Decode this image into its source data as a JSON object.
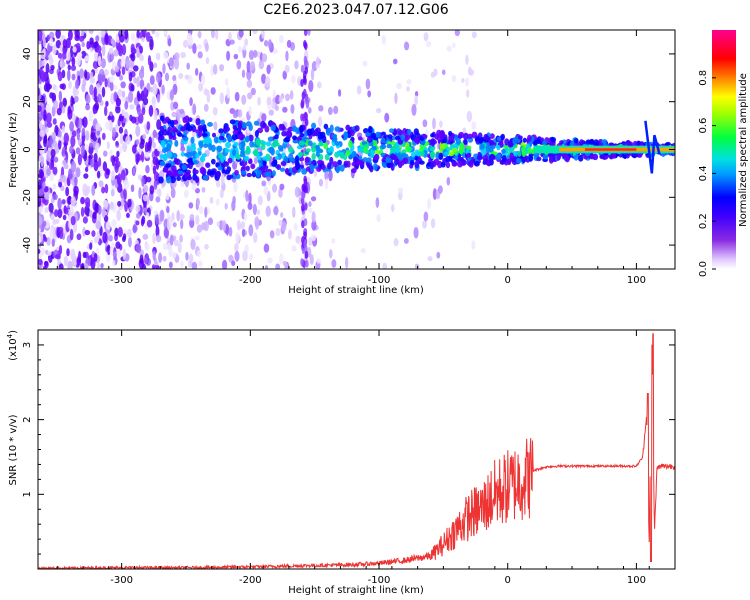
{
  "title": "C2E6.2023.047.07.12.G06",
  "chart_data": [
    {
      "type": "heatmap",
      "xlabel": "Height of straight line (km)",
      "ylabel": "Frequency (Hz)",
      "xlim": [
        -365,
        130
      ],
      "ylim": [
        -50,
        50
      ],
      "xticks": [
        -300,
        -200,
        -100,
        0,
        100
      ],
      "yticks": [
        -40,
        -20,
        0,
        20,
        40
      ],
      "colorbar": {
        "label": "Normalized spectral amplitude",
        "range": [
          0.0,
          1.0
        ],
        "ticks": [
          "0.0",
          "0.2",
          "0.4",
          "0.6",
          "0.8"
        ],
        "colormap": [
          "#ffffff",
          "#e8d8ff",
          "#8a2be2",
          "#5a00ff",
          "#0000ff",
          "#00a0ff",
          "#00e0e0",
          "#00ff40",
          "#c0ff00",
          "#ffff00",
          "#ff8000",
          "#ff0000",
          "#ff0090"
        ]
      },
      "features": {
        "noise_region_km": [
          -365,
          -145
        ],
        "signal_onset_km": -270,
        "carrier_center_hz": 0,
        "carrier_strong_from_km": 20
      }
    },
    {
      "type": "line",
      "xlabel": "Height of straight line (km)",
      "ylabel": "SNR (10 * v/v)",
      "y_scale_label": "(x10",
      "y_scale_exp": "4",
      "y_scale_close": ")",
      "xlim": [
        -365,
        130
      ],
      "ylim": [
        0,
        3.2
      ],
      "xticks": [
        -300,
        -200,
        -100,
        0,
        100
      ],
      "yticks": [
        1,
        2,
        3
      ],
      "color": "#ee3333",
      "series": [
        {
          "x": [
            -365,
            -300,
            -250,
            -200,
            -150,
            -120,
            -100,
            -80,
            -60,
            -50,
            -40,
            -30,
            -20,
            -10,
            0,
            10,
            20,
            30,
            40,
            60,
            80,
            100,
            105,
            108,
            110,
            112,
            114,
            116,
            120,
            130
          ],
          "values": [
            0.01,
            0.02,
            0.02,
            0.03,
            0.05,
            0.06,
            0.08,
            0.12,
            0.18,
            0.35,
            0.55,
            0.75,
            0.85,
            1.05,
            1.15,
            1.25,
            1.32,
            1.37,
            1.38,
            1.38,
            1.38,
            1.38,
            1.5,
            2.1,
            0.3,
            3.1,
            0.5,
            1.36,
            1.38,
            1.38
          ]
        }
      ]
    }
  ]
}
